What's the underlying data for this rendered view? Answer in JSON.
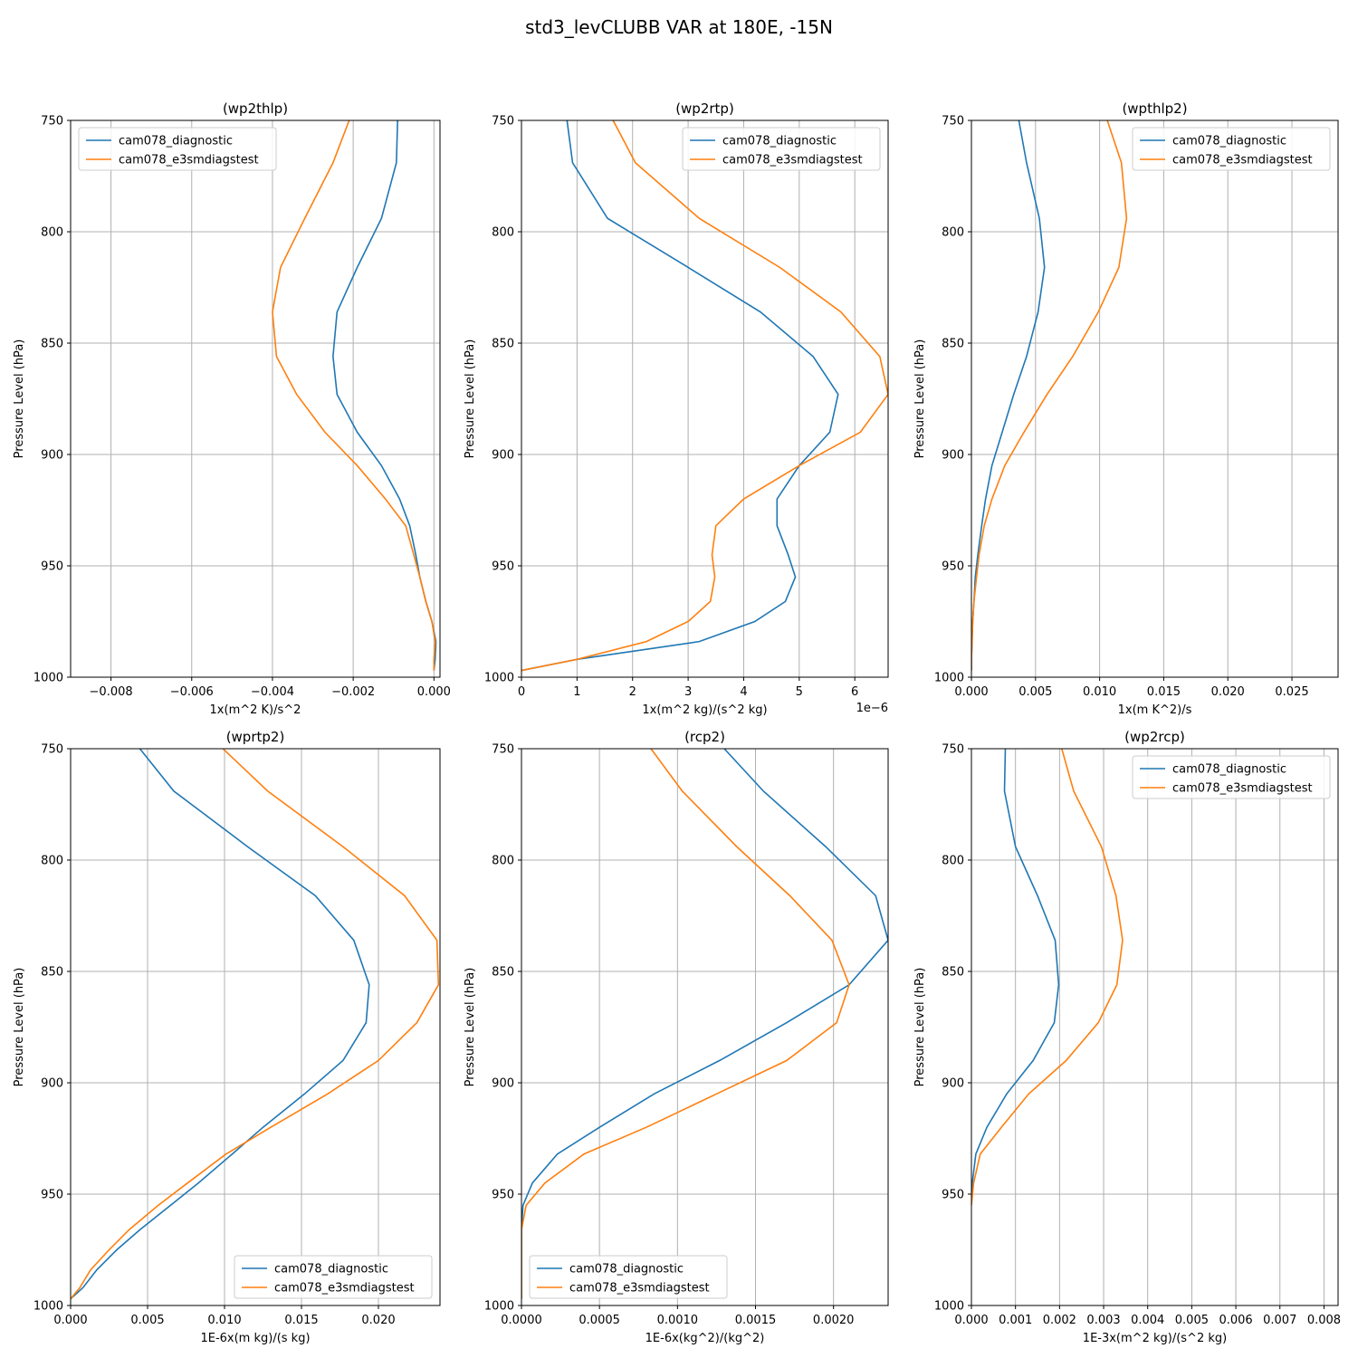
{
  "title": "std3_levCLUBB VAR at 180E, -15N",
  "colors": {
    "series": [
      "#1f77b4",
      "#ff7f0e"
    ],
    "grid": "#b0b0b0",
    "axis": "#000000"
  },
  "chart_data": [
    {
      "type": "line",
      "title": "(wp2thlp)",
      "xlabel": "1x(m^2 K)/s^2",
      "ylabel": "Pressure Level (hPa)",
      "xlim": [
        -0.009,
        0.00015
      ],
      "ylim": [
        1000,
        750
      ],
      "y_inverted": true,
      "grid": true,
      "legend": "upper left",
      "xticks": [
        -0.008,
        -0.006,
        -0.004,
        -0.002,
        0.0
      ],
      "xtick_labels": [
        "−0.008",
        "−0.006",
        "−0.004",
        "−0.002",
        "0.000"
      ],
      "yticks": [
        750,
        800,
        850,
        900,
        950,
        1000
      ],
      "pressure": [
        750,
        769,
        794,
        816,
        836,
        856,
        873,
        890,
        905,
        920,
        932,
        945,
        955,
        966,
        975,
        984,
        992,
        997
      ],
      "series": [
        {
          "name": "cam078_diagnostic",
          "values": [
            -0.0009,
            -0.00093,
            -0.0013,
            -0.0019,
            -0.0024,
            -0.0025,
            -0.0024,
            -0.0019,
            -0.0013,
            -0.00085,
            -0.0006,
            -0.00045,
            -0.00035,
            -0.0002,
            -5e-05,
            5e-05,
            3e-05,
            0.0
          ]
        },
        {
          "name": "cam078_e3smdiagstest",
          "values": [
            -0.0021,
            -0.0025,
            -0.0032,
            -0.0038,
            -0.004,
            -0.0039,
            -0.0034,
            -0.0027,
            -0.0019,
            -0.0012,
            -0.0007,
            -0.0005,
            -0.00035,
            -0.0002,
            -5e-05,
            3e-05,
            0.0,
            0.0
          ]
        }
      ]
    },
    {
      "type": "line",
      "title": "(wp2rtp)",
      "xlabel": "1x(m^2 kg)/(s^2 kg)",
      "ylabel": "Pressure Level (hPa)",
      "x_multiplier_label": "1e−6",
      "xlim": [
        0,
        6.6
      ],
      "ylim": [
        1000,
        750
      ],
      "y_inverted": true,
      "grid": true,
      "legend": "upper right",
      "xticks": [
        0,
        1,
        2,
        3,
        4,
        5,
        6
      ],
      "xtick_labels": [
        "0",
        "1",
        "2",
        "3",
        "4",
        "5",
        "6"
      ],
      "yticks": [
        750,
        800,
        850,
        900,
        950,
        1000
      ],
      "pressure": [
        750,
        769,
        794,
        816,
        836,
        856,
        873,
        890,
        905,
        920,
        932,
        945,
        955,
        966,
        975,
        984,
        992,
        997
      ],
      "series": [
        {
          "name": "cam078_diagnostic",
          "values": [
            0.82,
            0.92,
            1.55,
            3.0,
            4.3,
            5.25,
            5.7,
            5.55,
            5.0,
            4.6,
            4.6,
            4.8,
            4.93,
            4.75,
            4.2,
            3.2,
            1.0,
            0.0
          ]
        },
        {
          "name": "cam078_e3smdiagstest",
          "values": [
            1.65,
            2.05,
            3.2,
            4.65,
            5.75,
            6.45,
            6.6,
            6.1,
            5.0,
            4.0,
            3.5,
            3.43,
            3.48,
            3.4,
            3.0,
            2.25,
            1.0,
            0.0
          ]
        }
      ]
    },
    {
      "type": "line",
      "title": "(wpthlp2)",
      "xlabel": "1x(m K^2)/s",
      "ylabel": "Pressure Level (hPa)",
      "xlim": [
        0,
        0.0286
      ],
      "ylim": [
        1000,
        750
      ],
      "y_inverted": true,
      "grid": true,
      "legend": "upper right",
      "xticks": [
        0.0,
        0.005,
        0.01,
        0.015,
        0.02,
        0.025
      ],
      "xtick_labels": [
        "0.000",
        "0.005",
        "0.010",
        "0.015",
        "0.020",
        "0.025"
      ],
      "yticks": [
        750,
        800,
        850,
        900,
        950,
        1000
      ],
      "pressure": [
        750,
        769,
        794,
        816,
        836,
        856,
        873,
        890,
        905,
        920,
        932,
        945,
        955,
        966,
        975,
        984,
        992,
        997
      ],
      "series": [
        {
          "name": "cam078_diagnostic",
          "values": [
            0.0037,
            0.0043,
            0.0053,
            0.0057,
            0.0052,
            0.0043,
            0.0033,
            0.0024,
            0.0016,
            0.0011,
            0.0008,
            0.0005,
            0.0003,
            0.0002,
            0.0001,
            5e-05,
            0.0,
            0.0
          ]
        },
        {
          "name": "cam078_e3smdiagstest",
          "values": [
            0.0106,
            0.0117,
            0.0121,
            0.0115,
            0.0099,
            0.0079,
            0.0059,
            0.0041,
            0.0026,
            0.0016,
            0.001,
            0.0006,
            0.0004,
            0.0002,
            0.0001,
            5e-05,
            0.0,
            0.0
          ]
        }
      ]
    },
    {
      "type": "line",
      "title": "(wprtp2)",
      "xlabel": "1E-6x(m kg)/(s kg)",
      "ylabel": "Pressure Level (hPa)",
      "xlim": [
        0,
        0.024
      ],
      "ylim": [
        1000,
        750
      ],
      "y_inverted": true,
      "grid": true,
      "legend": "lower right",
      "xticks": [
        0.0,
        0.005,
        0.01,
        0.015,
        0.02
      ],
      "xtick_labels": [
        "0.000",
        "0.005",
        "0.010",
        "0.015",
        "0.020"
      ],
      "yticks": [
        750,
        800,
        850,
        900,
        950,
        1000
      ],
      "pressure": [
        750,
        769,
        794,
        816,
        836,
        856,
        873,
        890,
        905,
        920,
        932,
        945,
        955,
        966,
        975,
        984,
        992,
        997
      ],
      "series": [
        {
          "name": "cam078_diagnostic",
          "values": [
            0.0045,
            0.0067,
            0.0115,
            0.0159,
            0.0184,
            0.0194,
            0.0192,
            0.0177,
            0.0152,
            0.0125,
            0.0105,
            0.0083,
            0.0065,
            0.0045,
            0.003,
            0.0017,
            0.0008,
            0.0
          ]
        },
        {
          "name": "cam078_e3smdiagstest",
          "values": [
            0.0099,
            0.0128,
            0.0177,
            0.0217,
            0.0238,
            0.0239,
            0.0225,
            0.02,
            0.0167,
            0.013,
            0.0101,
            0.0076,
            0.0057,
            0.0038,
            0.0025,
            0.0013,
            0.0006,
            0.0
          ]
        }
      ]
    },
    {
      "type": "line",
      "title": "(rcp2)",
      "xlabel": "1E-6x(kg^2)/(kg^2)",
      "ylabel": "Pressure Level (hPa)",
      "xlim": [
        0,
        0.00235
      ],
      "ylim": [
        1000,
        750
      ],
      "y_inverted": true,
      "grid": true,
      "legend": "lower left",
      "xticks": [
        0.0,
        0.0005,
        0.001,
        0.0015,
        0.002
      ],
      "xtick_labels": [
        "0.0000",
        "0.0005",
        "0.0010",
        "0.0015",
        "0.0020"
      ],
      "yticks": [
        750,
        800,
        850,
        900,
        950,
        1000
      ],
      "pressure": [
        750,
        769,
        794,
        816,
        836,
        856,
        873,
        890,
        905,
        920,
        932,
        945,
        955,
        966,
        975,
        984,
        992,
        997
      ],
      "series": [
        {
          "name": "cam078_diagnostic",
          "values": [
            0.0013,
            0.00155,
            0.00195,
            0.00227,
            0.00235,
            0.0021,
            0.0017,
            0.00127,
            0.00085,
            0.0005,
            0.00023,
            7e-05,
            1e-05,
            0.0,
            0.0,
            0.0,
            0.0,
            0.0
          ]
        },
        {
          "name": "cam078_e3smdiagstest",
          "values": [
            0.00083,
            0.00103,
            0.00138,
            0.00172,
            0.00199,
            0.0021,
            0.00202,
            0.0017,
            0.00125,
            0.0008,
            0.0004,
            0.00015,
            3e-05,
            0.0,
            0.0,
            0.0,
            0.0,
            0.0
          ]
        }
      ]
    },
    {
      "type": "line",
      "title": "(wp2rcp)",
      "xlabel": "1E-3x(m^2 kg)/(s^2 kg)",
      "ylabel": "Pressure Level (hPa)",
      "xlim": [
        0,
        0.00832
      ],
      "ylim": [
        1000,
        750
      ],
      "y_inverted": true,
      "grid": true,
      "legend": "upper right",
      "xticks": [
        0.0,
        0.001,
        0.002,
        0.003,
        0.004,
        0.005,
        0.006,
        0.007,
        0.008
      ],
      "xtick_labels": [
        "0.000",
        "0.001",
        "0.002",
        "0.003",
        "0.004",
        "0.005",
        "0.006",
        "0.007",
        "0.008"
      ],
      "yticks": [
        750,
        800,
        850,
        900,
        950,
        1000
      ],
      "pressure": [
        750,
        769,
        794,
        816,
        836,
        856,
        873,
        890,
        905,
        920,
        932,
        945,
        955
      ],
      "series": [
        {
          "name": "cam078_diagnostic",
          "values": [
            0.00077,
            0.00075,
            0.001,
            0.0015,
            0.0019,
            0.00198,
            0.00188,
            0.0014,
            0.0008,
            0.00035,
            0.0001,
            2e-05,
            0.0
          ]
        },
        {
          "name": "cam078_e3smdiagstest",
          "values": [
            0.00205,
            0.00232,
            0.00295,
            0.00328,
            0.00343,
            0.0033,
            0.00288,
            0.00215,
            0.0013,
            0.00068,
            0.0002,
            5e-05,
            0.0
          ]
        }
      ]
    }
  ]
}
